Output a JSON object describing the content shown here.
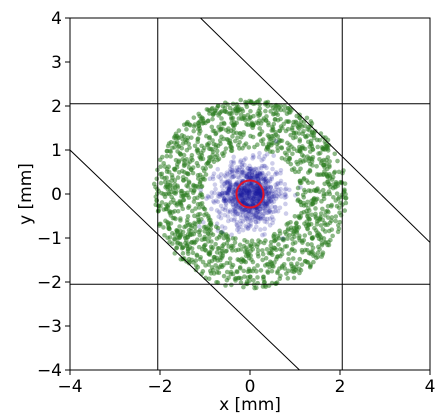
{
  "chart_data": {
    "type": "scatter",
    "title": "",
    "xlabel": "x [mm]",
    "ylabel": "y [mm]",
    "xlim": [
      -4,
      4
    ],
    "ylim": [
      -4,
      4
    ],
    "x_ticks": [
      -4,
      -2,
      0,
      2,
      4
    ],
    "y_ticks": [
      -4,
      -3,
      -2,
      -1,
      0,
      1,
      2,
      3,
      4
    ],
    "x_tick_labels": [
      "−4",
      "−2",
      "0",
      "2",
      "4"
    ],
    "y_tick_labels": [
      "−4",
      "−3",
      "−2",
      "−1",
      "0",
      "1",
      "2",
      "3",
      "4"
    ],
    "grid": false,
    "series": [
      {
        "kind": "scatter-annulus",
        "center": [
          0,
          0
        ],
        "r_inner": 1.05,
        "r_outer": 2.15,
        "count": 1400,
        "color": "#2e7d22",
        "opacity": 0.55
      },
      {
        "kind": "scatter-gaussian",
        "center": [
          0,
          0
        ],
        "sigma": 0.35,
        "count": 900,
        "color": "#1a1aa0",
        "opacity": 0.22
      },
      {
        "kind": "circle",
        "center": [
          0,
          0
        ],
        "radius": 0.3,
        "color": "#e0142a"
      }
    ],
    "reference_lines": {
      "vertical": [
        -2.05,
        2.05
      ],
      "horizontal": [
        2.05,
        -2.05
      ],
      "diagonal": [
        {
          "from": [
            -1.1,
            4.0
          ],
          "to": [
            4.0,
            -1.1
          ]
        },
        {
          "from": [
            -4.0,
            1.0
          ],
          "to": [
            1.1,
            -4.0
          ]
        }
      ],
      "color": "#000000"
    }
  }
}
